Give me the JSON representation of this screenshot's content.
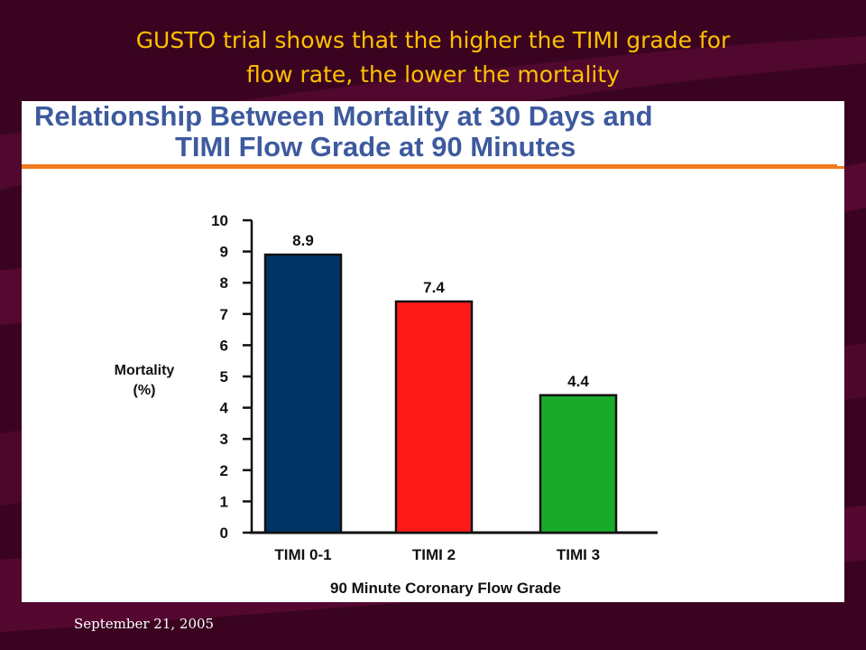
{
  "slide": {
    "title_line1": "GUSTO trial shows that the higher the TIMI grade for",
    "title_line2": "flow rate, the lower the mortality",
    "footer_date": "September 21, 2005"
  },
  "colors": {
    "background": "#3a0420",
    "title": "#ffc000",
    "panel_heading": "#3e5a9e",
    "rule": "#f07a1c"
  },
  "chart_data": {
    "type": "bar",
    "title_line1": "Relationship Between Mortality at 30 Days and",
    "title_line2": "TIMI Flow Grade at 90 Minutes",
    "categories": [
      "TIMI 0-1",
      "TIMI 2",
      "TIMI 3"
    ],
    "values": [
      8.9,
      7.4,
      4.4
    ],
    "value_labels": [
      "8.9",
      "7.4",
      "4.4"
    ],
    "bar_colors": [
      "#003366",
      "#ff1a1a",
      "#1aaa2a"
    ],
    "ylabel_line1": "Mortality",
    "ylabel_line2": "(%)",
    "xlabel": "90 Minute Coronary Flow Grade",
    "ylim": [
      0,
      10
    ],
    "yticks": [
      0,
      1,
      2,
      3,
      4,
      5,
      6,
      7,
      8,
      9,
      10
    ],
    "grid": false,
    "legend": "none"
  }
}
